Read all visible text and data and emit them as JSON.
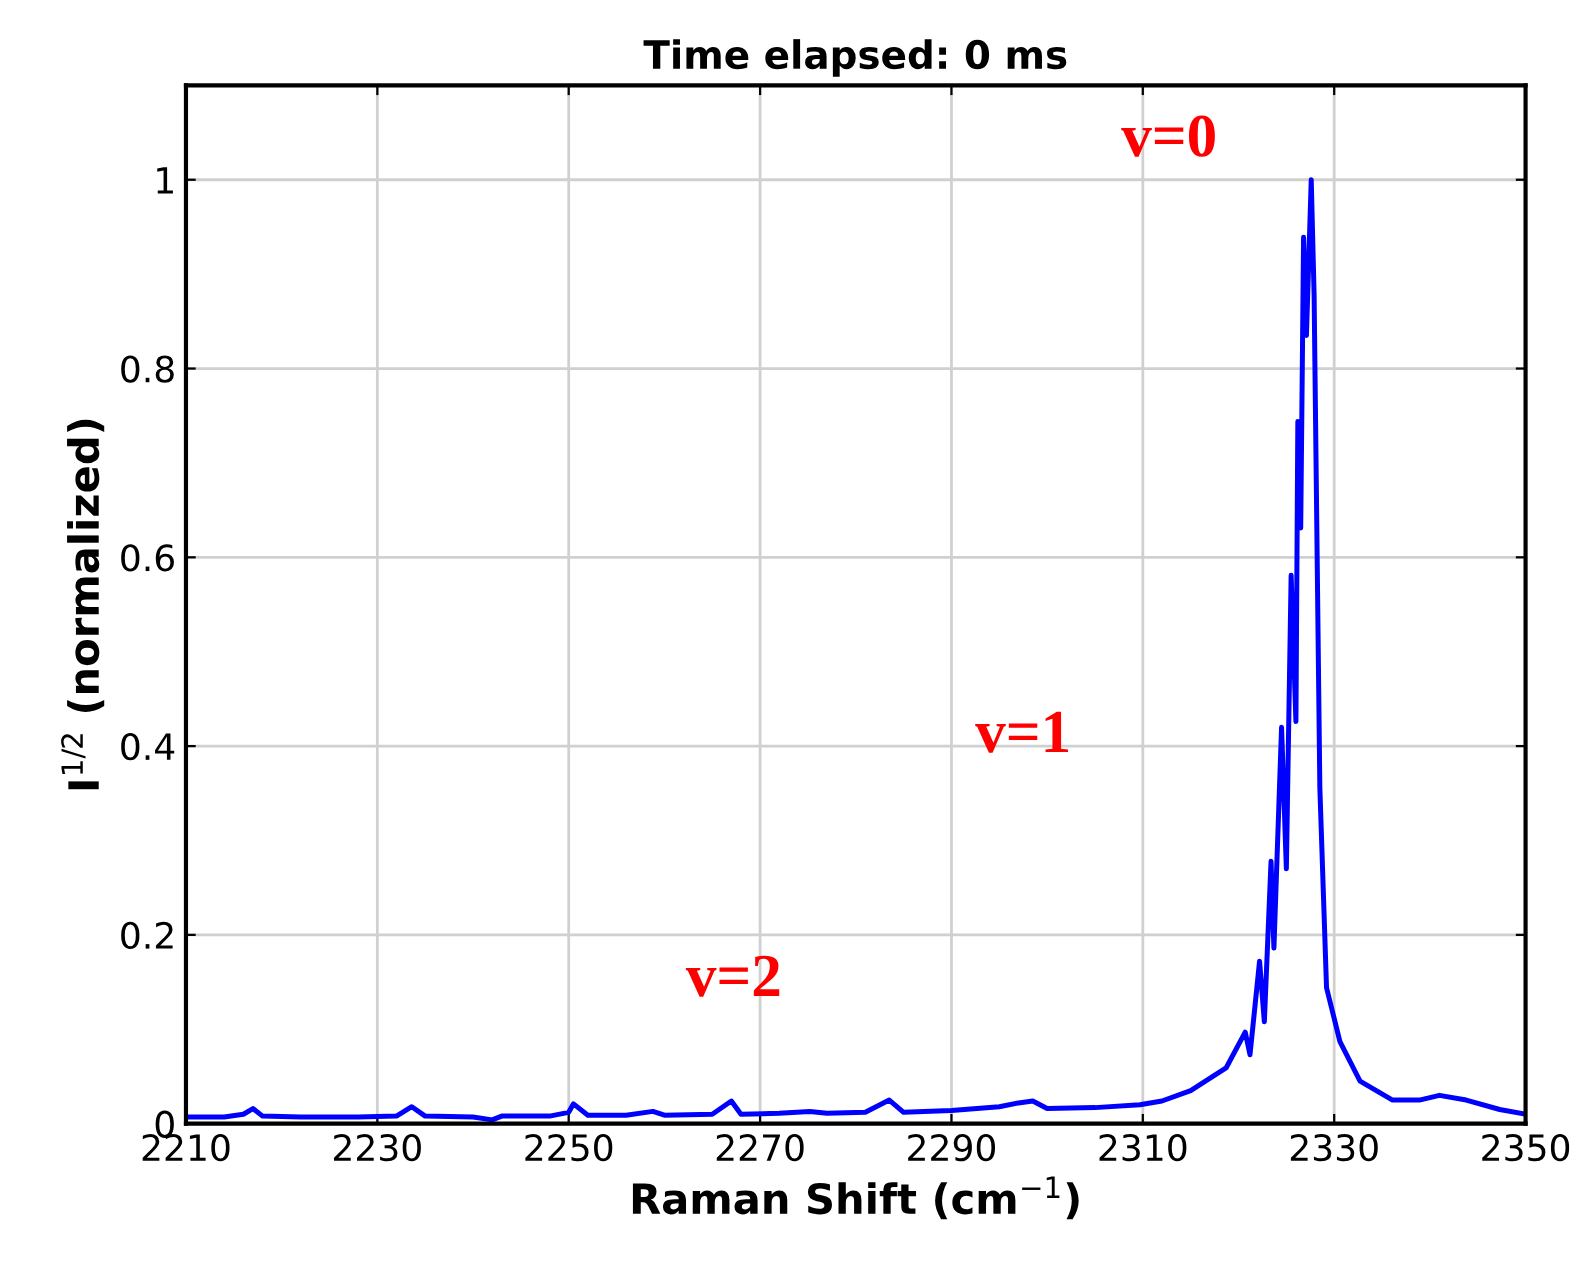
{
  "chart_data": {
    "type": "line",
    "title": "Time elapsed: 0 ms",
    "xlabel": "Raman Shift (cm$^{−1}$)",
    "ylabel": "I$^{1/2}$ (normalized)",
    "series": [
      {
        "color": "#0000ff",
        "x": [
          2210,
          2214,
          2216,
          2217,
          2218,
          2222,
          2228,
          2232,
          2233.6,
          2235,
          2240,
          2242,
          2243,
          2248,
          2250,
          2250.5,
          2252,
          2256,
          2258.8,
          2260,
          2265,
          2267,
          2268,
          2272,
          2275.2,
          2277,
          2281,
          2283.5,
          2285,
          2290,
          2295,
          2297,
          2298.5,
          2300,
          2305,
          2309.7,
          2312,
          2315,
          2318.7,
          2320.7,
          2321.2,
          2322.2,
          2322.7,
          2323.4,
          2323.7,
          2324.5,
          2325.0,
          2325.5,
          2326.0,
          2326.2,
          2326.5,
          2326.8,
          2327.1,
          2327.6,
          2327.9,
          2328.5,
          2329.2,
          2330.6,
          2332.7,
          2336.1,
          2338.9,
          2341,
          2343.8,
          2347.3,
          2350
        ],
        "values": [
          0.007,
          0.007,
          0.01,
          0.016,
          0.008,
          0.007,
          0.007,
          0.008,
          0.018,
          0.008,
          0.007,
          0.004,
          0.008,
          0.008,
          0.012,
          0.021,
          0.009,
          0.009,
          0.013,
          0.009,
          0.01,
          0.024,
          0.01,
          0.011,
          0.013,
          0.011,
          0.012,
          0.025,
          0.012,
          0.014,
          0.018,
          0.022,
          0.024,
          0.016,
          0.017,
          0.02,
          0.024,
          0.035,
          0.059,
          0.097,
          0.073,
          0.172,
          0.108,
          0.278,
          0.186,
          0.42,
          0.27,
          0.581,
          0.426,
          0.744,
          0.631,
          0.939,
          0.835,
          1.0,
          0.878,
          0.356,
          0.144,
          0.087,
          0.045,
          0.025,
          0.025,
          0.03,
          0.025,
          0.015,
          0.01
        ]
      }
    ],
    "xlim": [
      2210,
      2350
    ],
    "xticks": [
      2210,
      2230,
      2250,
      2270,
      2290,
      2310,
      2330,
      2350
    ],
    "ylim": [
      0,
      1.1
    ],
    "yticks": [
      0,
      0.2,
      0.4,
      0.6,
      0.8,
      1
    ],
    "grid": true,
    "annotations": [
      "v=0",
      "v=1",
      "v=2"
    ]
  }
}
